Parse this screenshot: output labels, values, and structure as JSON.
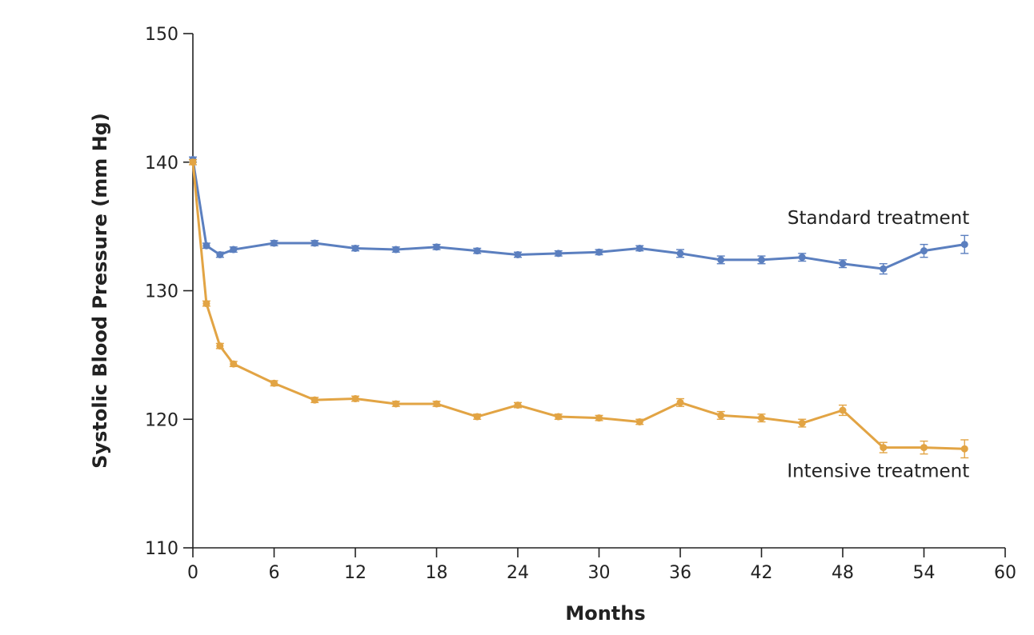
{
  "chart_data": {
    "type": "line",
    "xlabel": "Months",
    "ylabel": "Systolic Blood Pressure (mm Hg)",
    "xlim": [
      0,
      60
    ],
    "ylim": [
      110,
      150
    ],
    "x_ticks": [
      0,
      6,
      12,
      18,
      24,
      30,
      36,
      42,
      48,
      54,
      60
    ],
    "y_ticks": [
      110,
      120,
      130,
      140,
      150
    ],
    "grid": false,
    "series": [
      {
        "name": "Standard treatment",
        "color": "#5b7fbf",
        "x": [
          0,
          1,
          2,
          3,
          6,
          9,
          12,
          15,
          18,
          21,
          24,
          27,
          30,
          33,
          36,
          39,
          42,
          45,
          48,
          51,
          54,
          57
        ],
        "y": [
          140.2,
          133.5,
          132.8,
          133.2,
          133.7,
          133.7,
          133.3,
          133.2,
          133.4,
          133.1,
          132.8,
          132.9,
          133.0,
          133.3,
          132.9,
          132.4,
          132.4,
          132.6,
          132.1,
          131.7,
          133.1,
          133.6
        ],
        "error": [
          0.2,
          0.2,
          0.2,
          0.2,
          0.2,
          0.2,
          0.2,
          0.2,
          0.2,
          0.2,
          0.2,
          0.2,
          0.2,
          0.2,
          0.3,
          0.3,
          0.3,
          0.3,
          0.3,
          0.4,
          0.5,
          0.7
        ]
      },
      {
        "name": "Intensive treatment",
        "color": "#e2a444",
        "x": [
          0,
          1,
          2,
          3,
          6,
          9,
          12,
          15,
          18,
          21,
          24,
          27,
          30,
          33,
          36,
          39,
          42,
          45,
          48,
          51,
          54,
          57
        ],
        "y": [
          140.0,
          129.0,
          125.7,
          124.3,
          122.8,
          121.5,
          121.6,
          121.2,
          121.2,
          120.2,
          121.1,
          120.2,
          120.1,
          119.8,
          121.3,
          120.3,
          120.1,
          119.7,
          120.7,
          117.8,
          117.8,
          117.7
        ],
        "error": [
          0.2,
          0.2,
          0.2,
          0.2,
          0.2,
          0.2,
          0.2,
          0.2,
          0.2,
          0.2,
          0.2,
          0.2,
          0.2,
          0.2,
          0.3,
          0.3,
          0.3,
          0.3,
          0.4,
          0.4,
          0.5,
          0.7
        ]
      }
    ],
    "annotations": [
      {
        "text": "Standard treatment",
        "x": 57,
        "y": 135.7
      },
      {
        "text": "Intensive treatment",
        "x": 57,
        "y": 116.0
      }
    ]
  }
}
